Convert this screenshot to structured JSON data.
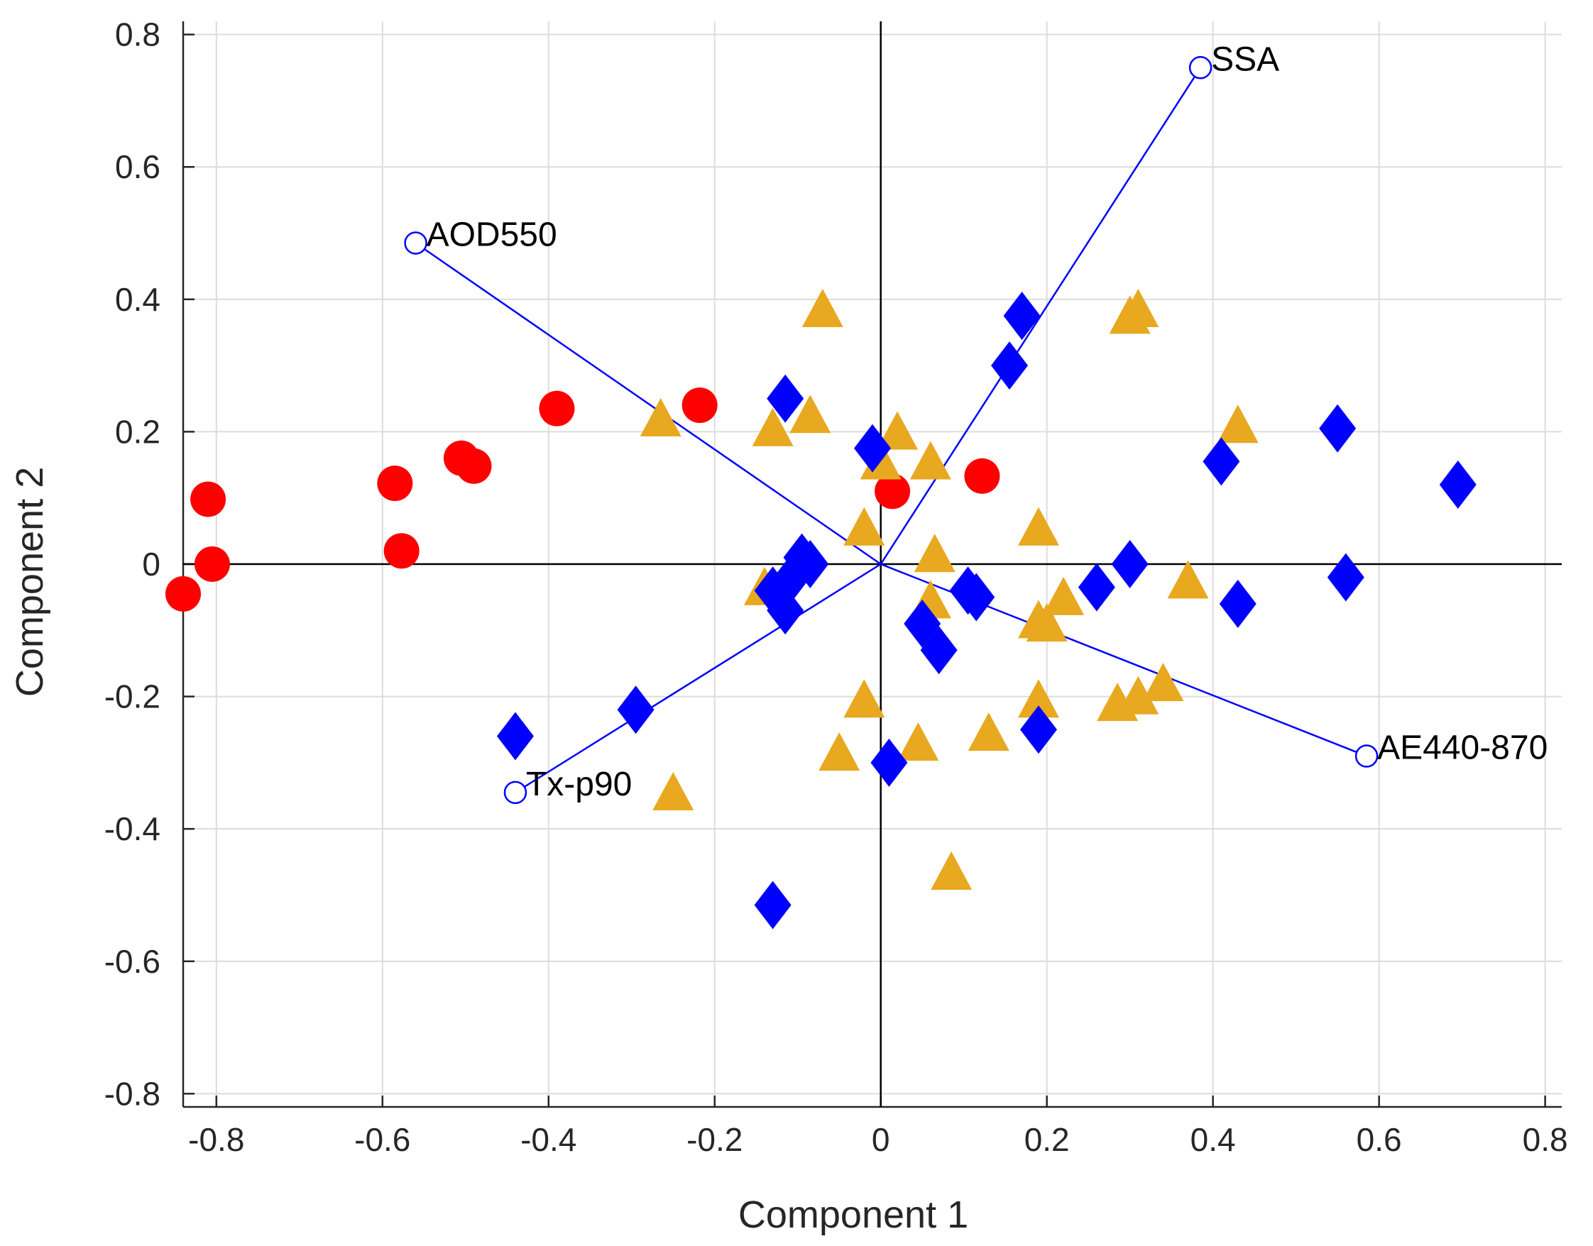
{
  "chart_data": {
    "type": "scatter",
    "title": "",
    "xlabel": "Component 1",
    "ylabel": "Component 2",
    "xlim": [
      -0.84,
      0.82
    ],
    "ylim": [
      -0.82,
      0.82
    ],
    "grid": true,
    "xticks": [
      -0.8,
      -0.6,
      -0.4,
      -0.2,
      0,
      0.2,
      0.4,
      0.6,
      0.8
    ],
    "xtick_labels": [
      "-0.8",
      "-0.6",
      "-0.4",
      "-0.2",
      "0",
      "0.2",
      "0.4",
      "0.6",
      "0.8"
    ],
    "yticks": [
      -0.8,
      -0.6,
      -0.4,
      -0.2,
      0,
      0.2,
      0.4,
      0.6,
      0.8
    ],
    "ytick_labels": [
      "-0.8",
      "-0.6",
      "-0.4",
      "-0.2",
      "0",
      "0.2",
      "0.4",
      "0.6",
      "0.8"
    ],
    "colors": {
      "circles": "#ff0000",
      "triangles": "#e8a81f",
      "diamonds": "#0000ff",
      "vectors": "#0000ff",
      "grid": "#dcdcdc",
      "axis": "#262626"
    },
    "vectors": [
      {
        "label": "AOD550",
        "x": -0.56,
        "y": 0.485
      },
      {
        "label": "SSA",
        "x": 0.385,
        "y": 0.75
      },
      {
        "label": "AE440-870",
        "x": 0.585,
        "y": -0.29
      },
      {
        "label": "Tx-p90",
        "x": -0.44,
        "y": -0.345
      }
    ],
    "series": [
      {
        "name": "circles",
        "marker": "circle",
        "points": [
          [
            -0.84,
            -0.045
          ],
          [
            -0.805,
            0.0
          ],
          [
            -0.81,
            0.098
          ],
          [
            -0.585,
            0.122
          ],
          [
            -0.577,
            0.02
          ],
          [
            -0.505,
            0.16
          ],
          [
            -0.49,
            0.148
          ],
          [
            -0.39,
            0.235
          ],
          [
            -0.218,
            0.24
          ],
          [
            0.014,
            0.11
          ],
          [
            0.122,
            0.133
          ]
        ]
      },
      {
        "name": "triangles",
        "marker": "triangle",
        "points": [
          [
            -0.265,
            0.215
          ],
          [
            -0.25,
            -0.35
          ],
          [
            -0.13,
            0.2
          ],
          [
            -0.14,
            -0.04
          ],
          [
            -0.085,
            0.22
          ],
          [
            -0.07,
            0.38
          ],
          [
            -0.05,
            -0.29
          ],
          [
            -0.02,
            0.05
          ],
          [
            -0.02,
            -0.21
          ],
          [
            0.0,
            0.15
          ],
          [
            0.02,
            0.195
          ],
          [
            0.045,
            -0.275
          ],
          [
            0.06,
            0.15
          ],
          [
            0.065,
            0.01
          ],
          [
            0.06,
            -0.06
          ],
          [
            0.085,
            -0.47
          ],
          [
            0.13,
            -0.26
          ],
          [
            0.19,
            0.05
          ],
          [
            0.19,
            -0.09
          ],
          [
            0.19,
            -0.21
          ],
          [
            0.2,
            -0.095
          ],
          [
            0.22,
            -0.055
          ],
          [
            0.285,
            -0.215
          ],
          [
            0.3,
            0.37
          ],
          [
            0.31,
            0.38
          ],
          [
            0.31,
            -0.205
          ],
          [
            0.34,
            -0.185
          ],
          [
            0.37,
            -0.03
          ],
          [
            0.43,
            0.205
          ]
        ]
      },
      {
        "name": "diamonds",
        "marker": "diamond",
        "points": [
          [
            -0.44,
            -0.26
          ],
          [
            -0.295,
            -0.22
          ],
          [
            -0.13,
            -0.515
          ],
          [
            -0.13,
            -0.04
          ],
          [
            -0.115,
            0.25
          ],
          [
            -0.115,
            -0.07
          ],
          [
            -0.11,
            -0.025
          ],
          [
            -0.095,
            0.01
          ],
          [
            -0.085,
            0.0
          ],
          [
            -0.01,
            0.175
          ],
          [
            0.01,
            -0.3
          ],
          [
            0.05,
            -0.09
          ],
          [
            0.07,
            -0.13
          ],
          [
            0.105,
            -0.04
          ],
          [
            0.115,
            -0.05
          ],
          [
            0.155,
            0.3
          ],
          [
            0.17,
            0.375
          ],
          [
            0.19,
            -0.25
          ],
          [
            0.26,
            -0.035
          ],
          [
            0.3,
            0.0
          ],
          [
            0.41,
            0.155
          ],
          [
            0.43,
            -0.06
          ],
          [
            0.55,
            0.205
          ],
          [
            0.56,
            -0.02
          ],
          [
            0.695,
            0.12
          ]
        ]
      }
    ]
  }
}
